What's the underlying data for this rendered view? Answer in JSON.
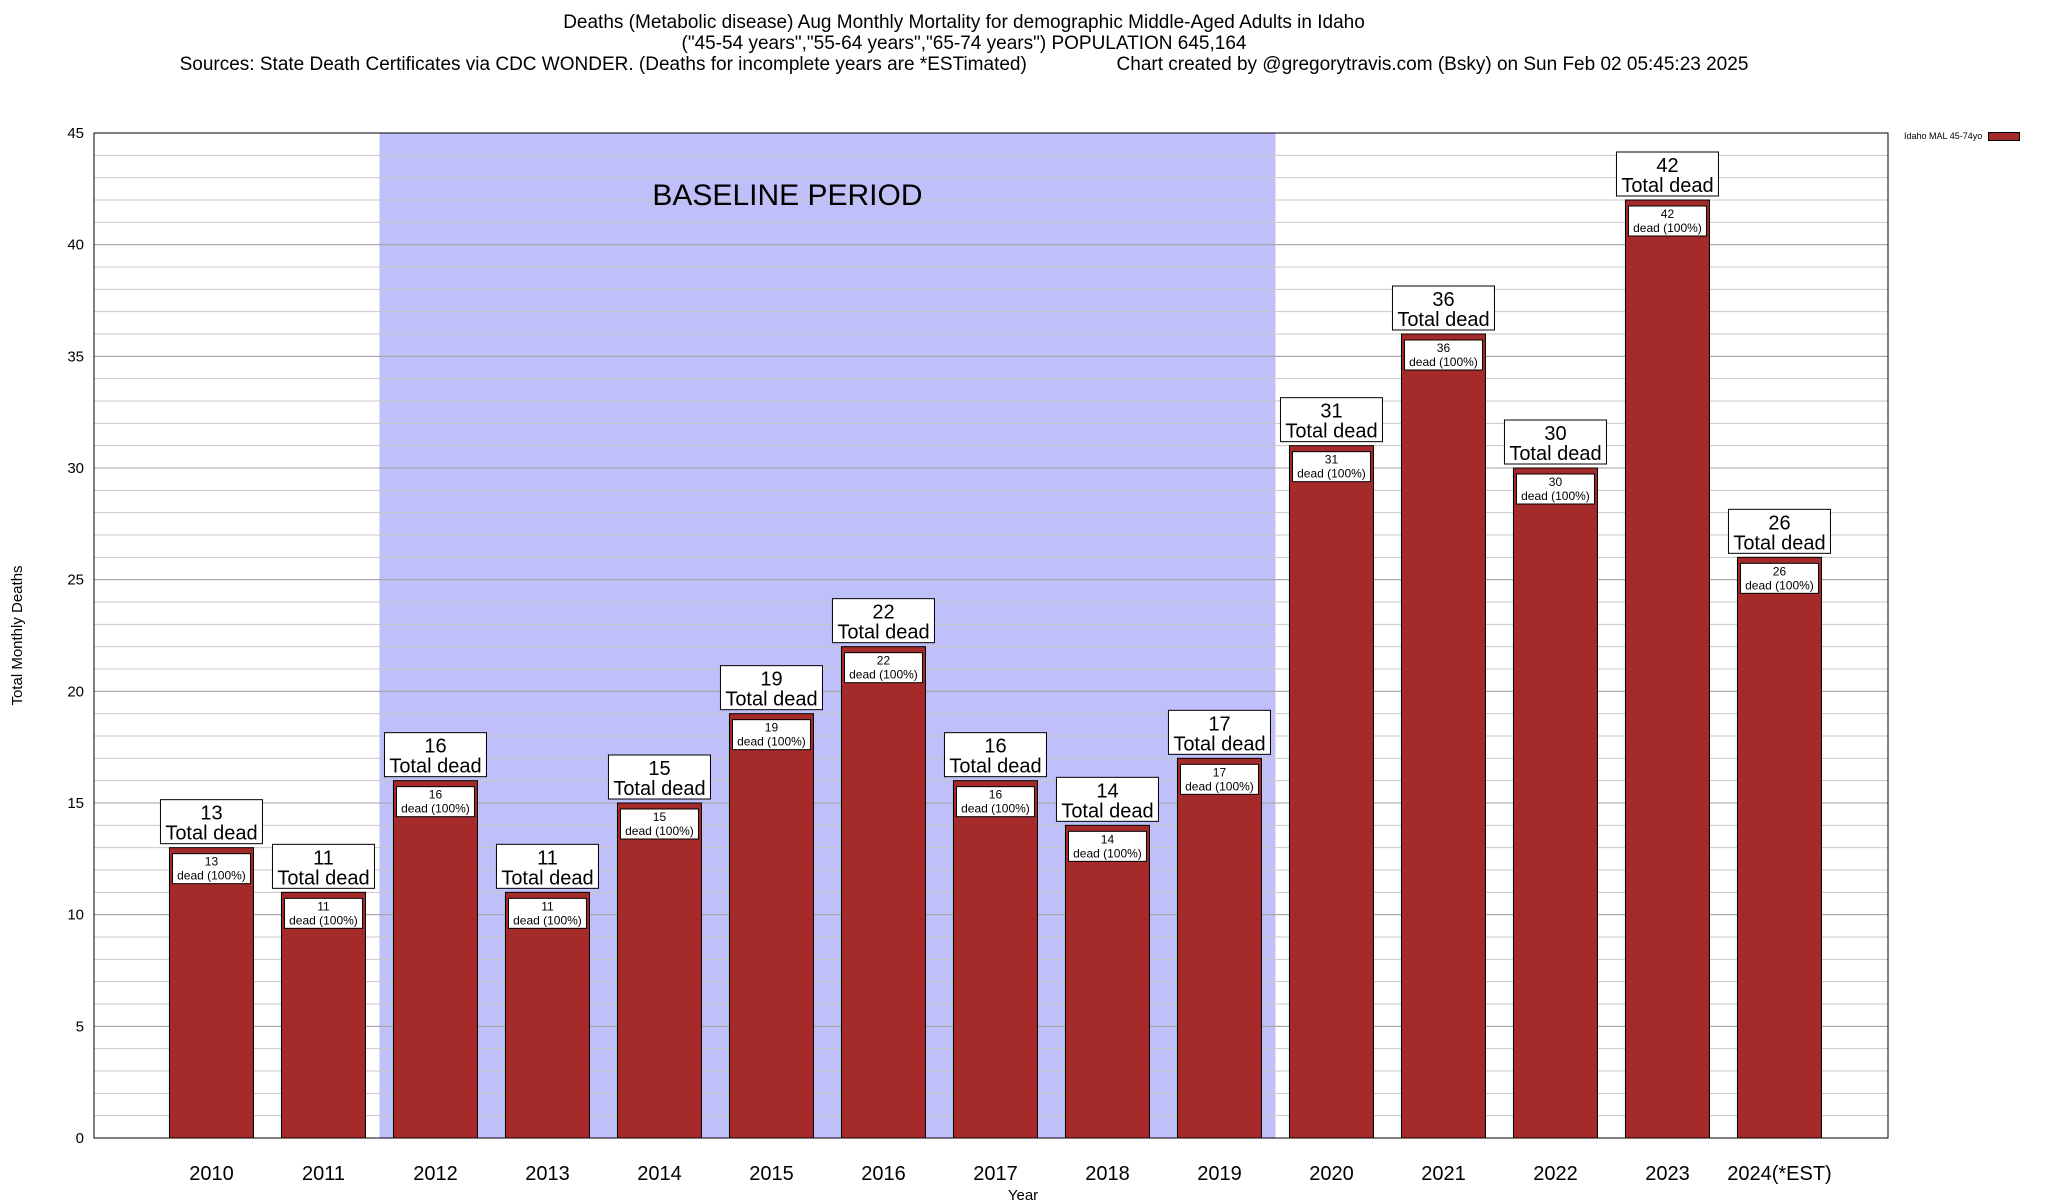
{
  "title": {
    "line1": "Deaths (Metabolic disease) Aug Monthly Mortality for demographic Middle-Aged Adults in Idaho",
    "line2": "(\"45-54 years\",\"55-64 years\",\"65-74 years\") POPULATION 645,164",
    "line3": "Sources: State Death Certificates via CDC WONDER. (Deaths for incomplete years are *ESTimated)                 Chart created by @gregorytravis.com (Bsky) on Sun Feb 02 05:45:23 2025"
  },
  "legend": {
    "label": "Idaho MAL 45-74yo",
    "color": "#a52a2a"
  },
  "colors": {
    "bar": "#a52a2a",
    "baseline": "#bfbffa"
  },
  "chart_data": {
    "type": "bar",
    "xlabel": "Year",
    "ylabel": "Total Monthly Deaths",
    "ylim": [
      0,
      45
    ],
    "ytick_step": 5,
    "grid": true,
    "categories": [
      "2010",
      "2011",
      "2012",
      "2013",
      "2014",
      "2015",
      "2016",
      "2017",
      "2018",
      "2019",
      "2020",
      "2021",
      "2022",
      "2023",
      "2024(*EST)"
    ],
    "series": [
      {
        "name": "Idaho MAL 45-74yo",
        "values": [
          13,
          11,
          16,
          11,
          15,
          19,
          22,
          16,
          14,
          17,
          31,
          36,
          30,
          42,
          26
        ]
      }
    ],
    "total_label": "Total dead",
    "inner_label": "dead (100%)",
    "baseline": {
      "label": "BASELINE PERIOD",
      "from": "2012",
      "to": "2019"
    }
  }
}
